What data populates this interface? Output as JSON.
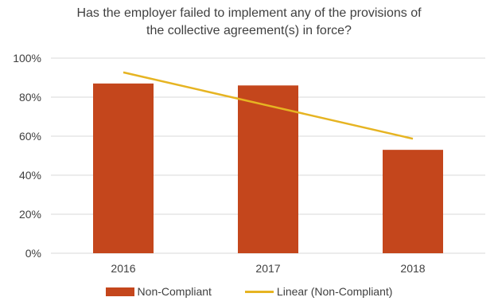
{
  "chart_data": {
    "type": "bar",
    "title_lines": [
      "Has the employer failed to implement any of the provisions of",
      "the collective agreement(s) in force?"
    ],
    "categories": [
      "2016",
      "2017",
      "2018"
    ],
    "series": [
      {
        "name": "Non-Compliant",
        "values": [
          87,
          86,
          53
        ],
        "color": "#C4461C"
      }
    ],
    "trendline": {
      "name": "Linear (Non-Compliant)",
      "values": [
        92.7,
        75.7,
        58.7
      ],
      "color": "#E6B422"
    },
    "ylim": [
      0,
      100
    ],
    "yticks": [
      "0%",
      "20%",
      "40%",
      "60%",
      "80%",
      "100%"
    ],
    "yticks_values": [
      0,
      20,
      40,
      60,
      80,
      100
    ],
    "grid": true,
    "legend_position": "bottom"
  }
}
